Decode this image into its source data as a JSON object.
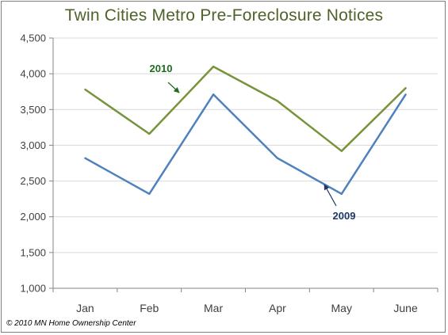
{
  "chart_data": {
    "type": "line",
    "title": "Twin Cities Metro Pre-Foreclosure Notices",
    "categories": [
      "Jan",
      "Feb",
      "Mar",
      "Apr",
      "May",
      "June"
    ],
    "series": [
      {
        "name": "2010",
        "values": [
          3780,
          3160,
          4100,
          3620,
          2920,
          3800
        ],
        "color": "#77933c"
      },
      {
        "name": "2009",
        "values": [
          2820,
          2320,
          3710,
          2820,
          2320,
          3710
        ],
        "color": "#4f81bd"
      }
    ],
    "y_ticks": [
      "1,000",
      "1,500",
      "2,000",
      "2,500",
      "3,000",
      "3,500",
      "4,000",
      "4,500"
    ],
    "ylim": [
      1000,
      4500
    ],
    "xlabel": "",
    "ylabel": "",
    "grid": true,
    "legend": "none",
    "annotations": [
      {
        "text": "2010",
        "color": "#1f6b1f",
        "series": "2010"
      },
      {
        "text": "2009",
        "color": "#1f3864",
        "series": "2009"
      }
    ]
  },
  "footer": {
    "copyright": "© 2010 MN Home Ownership Center"
  }
}
